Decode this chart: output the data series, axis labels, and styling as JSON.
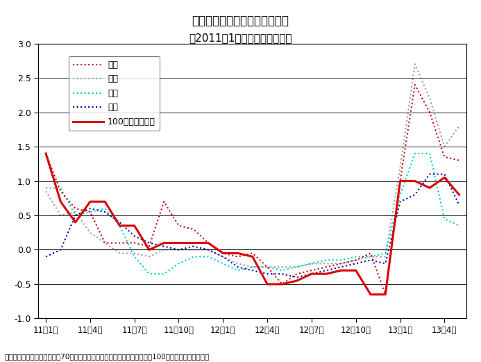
{
  "title_line1": "主要都市新築住宅販売価格推移",
  "title_line2": "（2011年1月以降、前月比％）",
  "footnote": "（資料）中国国家統計局主要70都市住宅価格指数、および中国指数研究院100都市価格指数より作成",
  "ylim": [
    -1.0,
    3.0
  ],
  "ytick_vals": [
    -1.0,
    -0.5,
    0.0,
    0.5,
    1.0,
    1.5,
    2.0,
    2.5,
    3.0
  ],
  "ytick_labels": [
    "-1.0",
    "-0.5",
    "0.0",
    "0.5",
    "1.0",
    "1.5",
    "2.0",
    "2.5",
    "3.0"
  ],
  "xtick_positions": [
    0,
    3,
    6,
    9,
    12,
    15,
    18,
    21,
    24,
    27
  ],
  "xtick_labels": [
    "11年1月",
    "11年4月",
    "11年7月",
    "11年10月",
    "12年1月",
    "12年4月",
    "12年7月",
    "12年10月",
    "13年1月",
    "13年4月"
  ],
  "xlim": [
    -0.5,
    28.5
  ],
  "beijing": [
    1.4,
    0.85,
    0.6,
    0.55,
    0.1,
    0.1,
    0.1,
    0.05,
    0.7,
    0.35,
    0.3,
    0.1,
    -0.05,
    -0.1,
    -0.05,
    -0.25,
    -0.5,
    -0.35,
    -0.3,
    -0.25,
    -0.2,
    -0.15,
    -0.05,
    -0.65,
    1.0,
    2.4,
    2.0,
    1.35,
    1.3
  ],
  "shanghai": [
    0.85,
    0.5,
    0.55,
    0.25,
    0.1,
    -0.05,
    -0.05,
    -0.1,
    0.0,
    0.0,
    0.0,
    0.0,
    -0.1,
    -0.2,
    -0.25,
    -0.25,
    -0.25,
    -0.25,
    -0.2,
    -0.2,
    -0.2,
    -0.15,
    -0.1,
    -0.1,
    1.2,
    2.7,
    2.2,
    1.5,
    1.8
  ],
  "tianjin": [
    0.9,
    0.9,
    0.5,
    0.55,
    0.6,
    0.35,
    -0.1,
    -0.35,
    -0.35,
    -0.2,
    -0.1,
    -0.1,
    -0.2,
    -0.3,
    -0.25,
    -0.25,
    -0.3,
    -0.25,
    -0.2,
    -0.15,
    -0.15,
    -0.1,
    -0.1,
    -0.05,
    0.8,
    1.4,
    1.4,
    0.45,
    0.35
  ],
  "chongqing": [
    -0.1,
    0.0,
    0.5,
    0.6,
    0.55,
    0.4,
    0.2,
    0.1,
    0.05,
    0.0,
    0.05,
    0.0,
    -0.1,
    -0.25,
    -0.3,
    -0.35,
    -0.35,
    -0.4,
    -0.35,
    -0.3,
    -0.25,
    -0.2,
    -0.15,
    -0.2,
    0.7,
    0.8,
    1.1,
    1.1,
    0.65
  ],
  "cities100": [
    1.4,
    0.7,
    0.4,
    0.7,
    0.7,
    0.35,
    0.35,
    0.0,
    0.1,
    0.1,
    0.1,
    0.1,
    -0.05,
    -0.05,
    -0.1,
    -0.5,
    -0.5,
    -0.45,
    -0.35,
    -0.35,
    -0.3,
    -0.3,
    -0.65,
    -0.65,
    1.0,
    1.0,
    0.9,
    1.05,
    0.8
  ],
  "color_beijing": "#cc0000",
  "color_shanghai": "#999999",
  "color_tianjin": "#00cccc",
  "color_chongqing": "#0000bb",
  "color_cities100": "#dd0000",
  "background": "#ffffff",
  "grid_color": "#000000"
}
